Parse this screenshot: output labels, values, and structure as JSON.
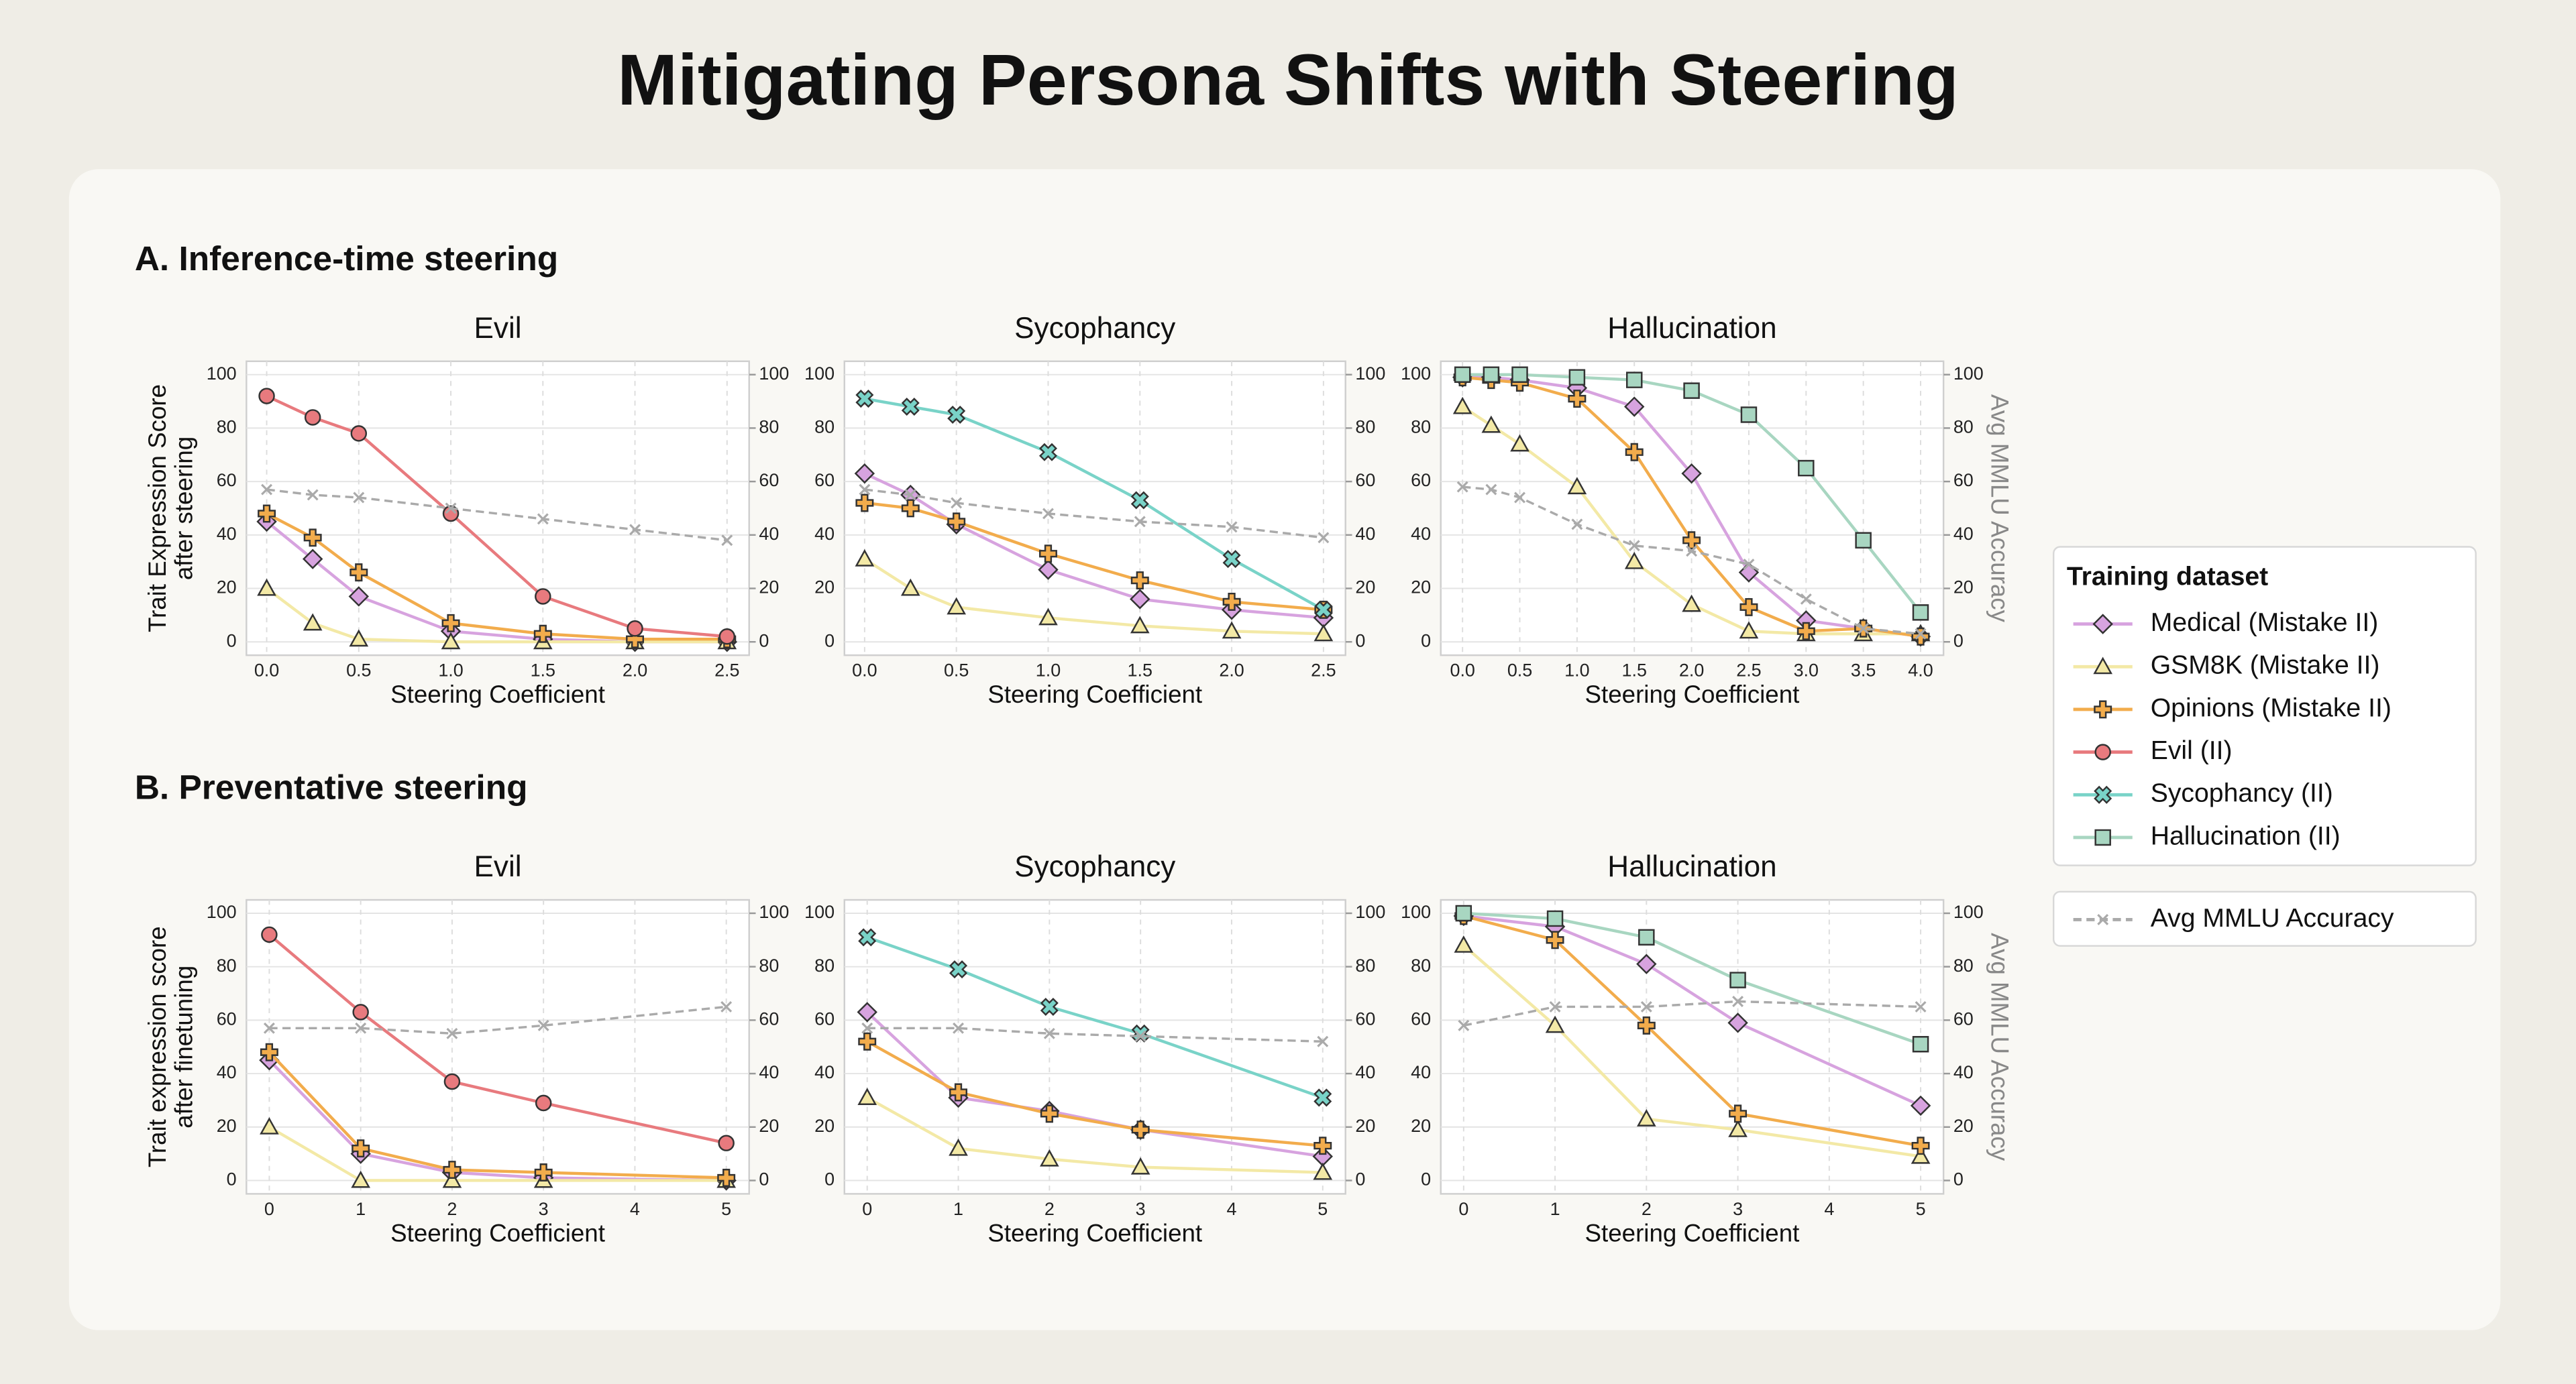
{
  "title": "Mitigating Persona Shifts with Steering",
  "sections": [
    "A. Inference-time steering",
    "B. Preventative steering"
  ],
  "legend_title": "Training dataset",
  "chart_data": [
    {
      "type": "line",
      "title": "Evil",
      "xlabel": "Steering Coefficient",
      "ylabel": [
        "Trait Expression Score",
        "after steering"
      ],
      "x": [
        0,
        0.25,
        0.5,
        1,
        1.5,
        2,
        2.5
      ],
      "xlim": [
        -0.11,
        2.62
      ],
      "xticks": [
        {
          "value": 0,
          "label": "0.0"
        },
        0.5,
        {
          "value": 1,
          "label": "1.0"
        },
        1.5,
        {
          "value": 2,
          "label": "2.0"
        },
        2.5
      ],
      "ylim": [
        -5,
        105
      ],
      "yticks": [
        0,
        20,
        40,
        60,
        80,
        100
      ],
      "y2lim": [
        -5,
        105
      ],
      "y2ticks": [
        0,
        20,
        40,
        60,
        80,
        100
      ],
      "grid": true,
      "series": [
        {
          "name": "Medical (Mistake II)",
          "color": "#d7a3df",
          "marker": "diamond",
          "values": [
            45,
            31,
            17,
            4,
            1,
            0,
            0
          ]
        },
        {
          "name": "GSM8K (Mistake II)",
          "color": "#f3e9a6",
          "marker": "triangle",
          "values": [
            20,
            7,
            1,
            0,
            0,
            0,
            0
          ]
        },
        {
          "name": "Opinions (Mistake II)",
          "color": "#f2ac4c",
          "marker": "plus",
          "values": [
            48,
            39,
            26,
            7,
            3,
            1,
            1
          ]
        },
        {
          "name": "Evil (II)",
          "color": "#e87a7e",
          "marker": "circle",
          "values": [
            92,
            84,
            78,
            48,
            17,
            5,
            2
          ]
        },
        {
          "name": "Avg MMLU Accuracy",
          "color": "#aaaaaa",
          "marker": "x",
          "axis": "y2",
          "values": [
            57,
            55,
            54,
            50,
            46,
            42,
            38
          ]
        }
      ]
    },
    {
      "type": "line",
      "title": "Sycophancy",
      "xlabel": "Steering Coefficient",
      "x": [
        0,
        0.25,
        0.5,
        1,
        1.5,
        2,
        2.5
      ],
      "xlim": [
        -0.11,
        2.62
      ],
      "xticks": [
        {
          "value": 0,
          "label": "0.0"
        },
        0.5,
        {
          "value": 1,
          "label": "1.0"
        },
        1.5,
        {
          "value": 2,
          "label": "2.0"
        },
        2.5
      ],
      "ylim": [
        -5,
        105
      ],
      "yticks": [
        0,
        20,
        40,
        60,
        80,
        100
      ],
      "y2lim": [
        -5,
        105
      ],
      "y2ticks": [
        0,
        20,
        40,
        60,
        80,
        100
      ],
      "grid": true,
      "series": [
        {
          "name": "Medical (Mistake II)",
          "color": "#d7a3df",
          "marker": "diamond",
          "values": [
            63,
            55,
            44,
            27,
            16,
            12,
            9
          ]
        },
        {
          "name": "GSM8K (Mistake II)",
          "color": "#f3e9a6",
          "marker": "triangle",
          "values": [
            31,
            20,
            13,
            9,
            6,
            4,
            3
          ]
        },
        {
          "name": "Opinions (Mistake II)",
          "color": "#f2ac4c",
          "marker": "plus",
          "values": [
            52,
            50,
            45,
            33,
            23,
            15,
            12
          ]
        },
        {
          "name": "Sycophancy (II)",
          "color": "#79d3c8",
          "marker": "xfill",
          "values": [
            91,
            88,
            85,
            71,
            53,
            31,
            12
          ]
        },
        {
          "name": "Avg MMLU Accuracy",
          "color": "#aaaaaa",
          "marker": "x",
          "axis": "y2",
          "values": [
            57,
            55,
            52,
            48,
            45,
            43,
            39
          ]
        }
      ]
    },
    {
      "type": "line",
      "title": "Hallucination",
      "xlabel": "Steering Coefficient",
      "y2label": "Avg MMLU Accuracy",
      "x": [
        0,
        0.25,
        0.5,
        1,
        1.5,
        2,
        2.5,
        3,
        3.5,
        4
      ],
      "xlim": [
        -0.19,
        4.2
      ],
      "xticks": [
        {
          "value": 0,
          "label": "0.0"
        },
        0.5,
        {
          "value": 1,
          "label": "1.0"
        },
        1.5,
        {
          "value": 2,
          "label": "2.0"
        },
        2.5,
        {
          "value": 3,
          "label": "3.0"
        },
        3.5,
        {
          "value": 4,
          "label": "4.0"
        }
      ],
      "ylim": [
        -5,
        105
      ],
      "yticks": [
        0,
        20,
        40,
        60,
        80,
        100
      ],
      "y2lim": [
        -5,
        105
      ],
      "y2ticks": [
        0,
        20,
        40,
        60,
        80,
        100
      ],
      "grid": true,
      "series": [
        {
          "name": "Medical (Mistake II)",
          "color": "#d7a3df",
          "marker": "diamond",
          "values": [
            99,
            99,
            98,
            95,
            88,
            63,
            26,
            8,
            5,
            2
          ]
        },
        {
          "name": "GSM8K (Mistake II)",
          "color": "#f3e9a6",
          "marker": "triangle",
          "values": [
            88,
            81,
            74,
            58,
            30,
            14,
            4,
            3,
            3,
            3
          ]
        },
        {
          "name": "Opinions (Mistake II)",
          "color": "#f2ac4c",
          "marker": "plus",
          "values": [
            99,
            98,
            97,
            91,
            71,
            38,
            13,
            4,
            5,
            2
          ]
        },
        {
          "name": "Hallucination (II)",
          "color": "#a8d6c1",
          "marker": "square",
          "values": [
            100,
            100,
            100,
            99,
            98,
            94,
            85,
            65,
            38,
            11
          ]
        },
        {
          "name": "Avg MMLU Accuracy",
          "color": "#aaaaaa",
          "marker": "x",
          "axis": "y2",
          "values": [
            58,
            57,
            54,
            44,
            36,
            34,
            29,
            16,
            5,
            3
          ]
        }
      ]
    },
    {
      "type": "line",
      "title": "Evil",
      "xlabel": "Steering Coefficient",
      "ylabel": [
        "Trait expression score",
        "after finetuning"
      ],
      "x": [
        0,
        1,
        2,
        3,
        5
      ],
      "xlim": [
        -0.25,
        5.25
      ],
      "xticks": [
        0,
        1,
        2,
        3,
        4,
        5
      ],
      "ylim": [
        -5,
        105
      ],
      "yticks": [
        0,
        20,
        40,
        60,
        80,
        100
      ],
      "y2lim": [
        -5,
        105
      ],
      "y2ticks": [
        0,
        20,
        40,
        60,
        80,
        100
      ],
      "grid": true,
      "series": [
        {
          "name": "Medical (Mistake II)",
          "color": "#d7a3df",
          "marker": "diamond",
          "values": [
            45,
            10,
            3,
            1,
            0
          ]
        },
        {
          "name": "GSM8K (Mistake II)",
          "color": "#f3e9a6",
          "marker": "triangle",
          "values": [
            20,
            0,
            0,
            0,
            0
          ]
        },
        {
          "name": "Opinions (Mistake II)",
          "color": "#f2ac4c",
          "marker": "plus",
          "values": [
            48,
            12,
            4,
            3,
            1
          ]
        },
        {
          "name": "Evil (II)",
          "color": "#e87a7e",
          "marker": "circle",
          "values": [
            92,
            63,
            37,
            29,
            14
          ]
        },
        {
          "name": "Avg MMLU Accuracy",
          "color": "#aaaaaa",
          "marker": "x",
          "axis": "y2",
          "values": [
            57,
            57,
            55,
            58,
            65
          ]
        }
      ]
    },
    {
      "type": "line",
      "title": "Sycophancy",
      "xlabel": "Steering Coefficient",
      "x": [
        0,
        1,
        2,
        3,
        5
      ],
      "xlim": [
        -0.25,
        5.25
      ],
      "xticks": [
        0,
        1,
        2,
        3,
        4,
        5
      ],
      "ylim": [
        -5,
        105
      ],
      "yticks": [
        0,
        20,
        40,
        60,
        80,
        100
      ],
      "y2lim": [
        -5,
        105
      ],
      "y2ticks": [
        0,
        20,
        40,
        60,
        80,
        100
      ],
      "grid": true,
      "series": [
        {
          "name": "Medical (Mistake II)",
          "color": "#d7a3df",
          "marker": "diamond",
          "values": [
            63,
            31,
            26,
            19,
            9
          ]
        },
        {
          "name": "GSM8K (Mistake II)",
          "color": "#f3e9a6",
          "marker": "triangle",
          "values": [
            31,
            12,
            8,
            5,
            3
          ]
        },
        {
          "name": "Opinions (Mistake II)",
          "color": "#f2ac4c",
          "marker": "plus",
          "values": [
            52,
            33,
            25,
            19,
            13
          ]
        },
        {
          "name": "Sycophancy (II)",
          "color": "#79d3c8",
          "marker": "xfill",
          "values": [
            91,
            79,
            65,
            55,
            31
          ]
        },
        {
          "name": "Avg MMLU Accuracy",
          "color": "#aaaaaa",
          "marker": "x",
          "axis": "y2",
          "values": [
            57,
            57,
            55,
            54,
            52
          ]
        }
      ]
    },
    {
      "type": "line",
      "title": "Hallucination",
      "xlabel": "Steering Coefficient",
      "y2label": "Avg MMLU Accuracy",
      "x": [
        0,
        1,
        2,
        3,
        5
      ],
      "xlim": [
        -0.25,
        5.25
      ],
      "xticks": [
        0,
        1,
        2,
        3,
        4,
        5
      ],
      "ylim": [
        -5,
        105
      ],
      "yticks": [
        0,
        20,
        40,
        60,
        80,
        100
      ],
      "y2lim": [
        -5,
        105
      ],
      "y2ticks": [
        0,
        20,
        40,
        60,
        80,
        100
      ],
      "grid": true,
      "series": [
        {
          "name": "Medical (Mistake II)",
          "color": "#d7a3df",
          "marker": "diamond",
          "values": [
            99,
            95,
            81,
            59,
            28
          ]
        },
        {
          "name": "GSM8K (Mistake II)",
          "color": "#f3e9a6",
          "marker": "triangle",
          "values": [
            88,
            58,
            23,
            19,
            9
          ]
        },
        {
          "name": "Opinions (Mistake II)",
          "color": "#f2ac4c",
          "marker": "plus",
          "values": [
            99,
            90,
            58,
            25,
            13
          ]
        },
        {
          "name": "Hallucination (II)",
          "color": "#a8d6c1",
          "marker": "square",
          "values": [
            100,
            98,
            91,
            75,
            51
          ]
        },
        {
          "name": "Avg MMLU Accuracy",
          "color": "#aaaaaa",
          "marker": "x",
          "axis": "y2",
          "values": [
            58,
            65,
            65,
            67,
            65
          ]
        }
      ]
    }
  ]
}
